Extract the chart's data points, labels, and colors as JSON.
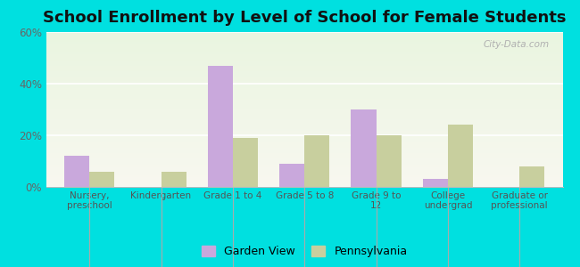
{
  "title": "School Enrollment by Level of School for Female Students",
  "categories": [
    "Nursery,\npreschool",
    "Kindergarten",
    "Grade 1 to 4",
    "Grade 5 to 8",
    "Grade 9 to\n12",
    "College\nundergrad",
    "Graduate or\nprofessional"
  ],
  "garden_view": [
    12,
    0,
    47,
    9,
    30,
    3,
    0
  ],
  "pennsylvania": [
    6,
    6,
    19,
    20,
    20,
    24,
    8
  ],
  "garden_view_color": "#c9a8dc",
  "pennsylvania_color": "#c8cf9e",
  "background_color": "#00e0e0",
  "ylim": [
    0,
    60
  ],
  "yticks": [
    0,
    20,
    40,
    60
  ],
  "ytick_labels": [
    "0%",
    "20%",
    "40%",
    "60%"
  ],
  "bar_width": 0.35,
  "title_fontsize": 13,
  "legend_labels": [
    "Garden View",
    "Pennsylvania"
  ],
  "watermark": "City-Data.com"
}
